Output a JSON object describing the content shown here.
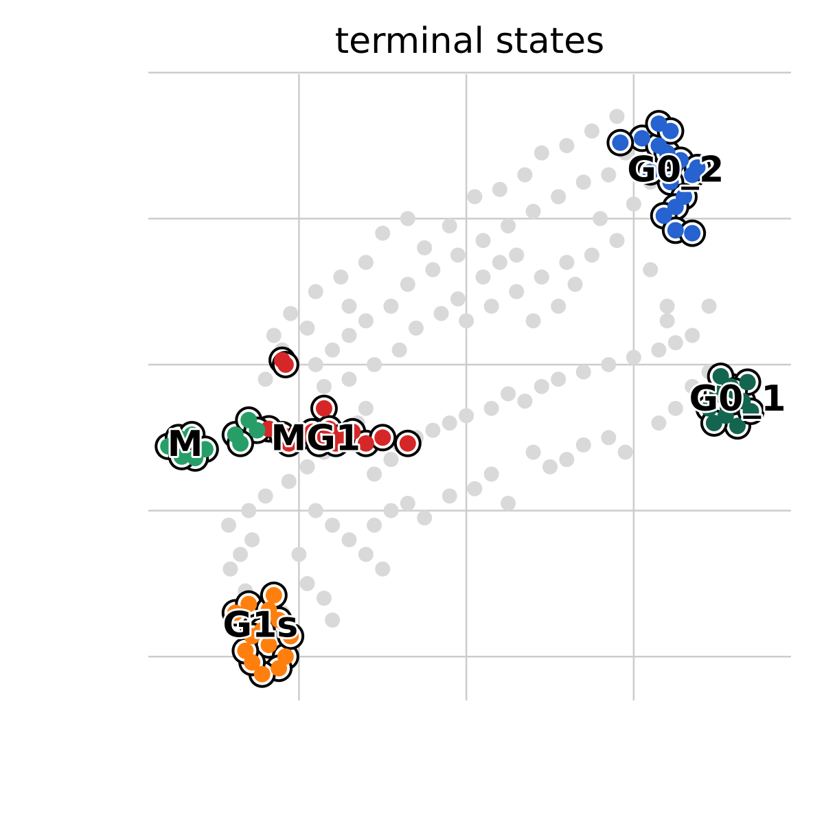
{
  "chart_data": {
    "type": "scatter",
    "title": "terminal states",
    "xlabel": "",
    "ylabel": "",
    "xlim": [
      0,
      3.84
    ],
    "ylim": [
      0,
      4.28
    ],
    "grid": true,
    "xgrid": [
      0.9,
      1.9,
      2.9
    ],
    "ygrid": [
      0.3,
      1.3,
      2.3,
      3.3,
      4.3
    ],
    "background_color": "#d9d9d9",
    "background_points": [
      [
        0.49,
        0.9
      ],
      [
        0.55,
        1.0
      ],
      [
        0.62,
        1.1
      ],
      [
        0.48,
        1.2
      ],
      [
        0.6,
        1.3
      ],
      [
        0.7,
        1.4
      ],
      [
        0.84,
        1.5
      ],
      [
        0.95,
        1.6
      ],
      [
        1.05,
        1.7
      ],
      [
        1.15,
        1.8
      ],
      [
        1.25,
        1.9
      ],
      [
        1.3,
        2.0
      ],
      [
        1.35,
        1.55
      ],
      [
        1.45,
        1.65
      ],
      [
        1.5,
        1.75
      ],
      [
        1.6,
        1.8
      ],
      [
        1.7,
        1.85
      ],
      [
        1.8,
        1.9
      ],
      [
        1.9,
        1.95
      ],
      [
        2.05,
        2.0
      ],
      [
        2.15,
        2.1
      ],
      [
        2.25,
        2.05
      ],
      [
        2.35,
        2.15
      ],
      [
        2.45,
        2.2
      ],
      [
        2.6,
        2.25
      ],
      [
        2.75,
        2.3
      ],
      [
        2.9,
        2.35
      ],
      [
        3.05,
        2.4
      ],
      [
        3.15,
        2.45
      ],
      [
        3.25,
        2.5
      ],
      [
        1.0,
        1.3
      ],
      [
        1.1,
        1.2
      ],
      [
        1.2,
        1.1
      ],
      [
        1.3,
        1.0
      ],
      [
        1.4,
        0.9
      ],
      [
        0.9,
        1.0
      ],
      [
        0.95,
        0.8
      ],
      [
        1.05,
        0.7
      ],
      [
        1.1,
        0.55
      ],
      [
        0.8,
        0.6
      ],
      [
        0.7,
        0.7
      ],
      [
        0.58,
        0.75
      ],
      [
        1.0,
        2.3
      ],
      [
        1.1,
        2.4
      ],
      [
        1.2,
        2.5
      ],
      [
        1.3,
        2.6
      ],
      [
        1.45,
        2.7
      ],
      [
        1.55,
        2.85
      ],
      [
        1.7,
        2.95
      ],
      [
        1.85,
        3.05
      ],
      [
        2.0,
        3.15
      ],
      [
        2.15,
        3.25
      ],
      [
        2.3,
        3.35
      ],
      [
        2.45,
        3.45
      ],
      [
        2.6,
        3.55
      ],
      [
        2.75,
        3.6
      ],
      [
        2.85,
        3.75
      ],
      [
        1.0,
        2.8
      ],
      [
        1.15,
        2.9
      ],
      [
        1.3,
        3.0
      ],
      [
        1.4,
        3.2
      ],
      [
        1.55,
        3.3
      ],
      [
        1.65,
        3.1
      ],
      [
        1.8,
        3.25
      ],
      [
        1.95,
        3.45
      ],
      [
        2.1,
        3.5
      ],
      [
        2.25,
        3.6
      ],
      [
        2.35,
        3.75
      ],
      [
        2.5,
        3.8
      ],
      [
        2.65,
        3.9
      ],
      [
        2.8,
        4.0
      ],
      [
        1.9,
        2.6
      ],
      [
        2.05,
        2.7
      ],
      [
        2.2,
        2.8
      ],
      [
        2.35,
        2.9
      ],
      [
        2.5,
        3.0
      ],
      [
        2.65,
        3.05
      ],
      [
        2.8,
        3.15
      ],
      [
        1.2,
        2.2
      ],
      [
        1.35,
        2.3
      ],
      [
        1.5,
        2.4
      ],
      [
        1.6,
        2.55
      ],
      [
        1.75,
        2.65
      ],
      [
        1.85,
        2.75
      ],
      [
        2.0,
        2.9
      ],
      [
        2.1,
        3.0
      ],
      [
        2.2,
        3.05
      ],
      [
        2.3,
        2.6
      ],
      [
        2.45,
        2.7
      ],
      [
        2.55,
        2.85
      ],
      [
        3.0,
        2.95
      ],
      [
        3.1,
        2.6
      ],
      [
        2.7,
        3.3
      ],
      [
        2.9,
        3.4
      ],
      [
        3.0,
        3.55
      ],
      [
        2.3,
        1.7
      ],
      [
        2.4,
        1.6
      ],
      [
        2.5,
        1.65
      ],
      [
        2.6,
        1.75
      ],
      [
        2.75,
        1.8
      ],
      [
        2.85,
        1.7
      ],
      [
        3.05,
        1.9
      ],
      [
        3.15,
        2.0
      ],
      [
        3.25,
        2.15
      ],
      [
        3.35,
        2.25
      ],
      [
        3.1,
        2.7
      ],
      [
        3.35,
        2.7
      ],
      [
        1.55,
        1.35
      ],
      [
        1.65,
        1.25
      ],
      [
        1.8,
        1.4
      ],
      [
        1.95,
        1.45
      ],
      [
        2.05,
        1.55
      ],
      [
        2.15,
        1.35
      ],
      [
        1.35,
        1.2
      ],
      [
        1.45,
        1.3
      ],
      [
        0.85,
        2.65
      ],
      [
        0.75,
        2.5
      ],
      [
        0.7,
        2.2
      ],
      [
        0.8,
        2.4
      ],
      [
        0.95,
        2.55
      ],
      [
        1.2,
        2.7
      ],
      [
        1.05,
        2.15
      ],
      [
        1.1,
        1.9
      ],
      [
        1.0,
        1.8
      ]
    ],
    "series": [
      {
        "name": "G0_2",
        "color": "#2662d0",
        "points": [
          [
            2.95,
            3.85
          ],
          [
            3.05,
            3.8
          ],
          [
            3.1,
            3.75
          ],
          [
            3.18,
            3.7
          ],
          [
            3.25,
            3.6
          ],
          [
            3.12,
            3.55
          ],
          [
            3.2,
            3.45
          ],
          [
            3.15,
            3.38
          ],
          [
            3.08,
            3.32
          ],
          [
            3.15,
            3.22
          ],
          [
            3.25,
            3.2
          ],
          [
            3.05,
            3.95
          ],
          [
            3.12,
            3.9
          ],
          [
            2.82,
            3.82
          ],
          [
            3.28,
            3.65
          ],
          [
            3.0,
            3.62
          ]
        ]
      },
      {
        "name": "G0_1",
        "color": "#13654f",
        "points": [
          [
            3.4,
            2.1
          ],
          [
            3.48,
            2.15
          ],
          [
            3.55,
            2.05
          ],
          [
            3.45,
            1.95
          ],
          [
            3.52,
            1.88
          ],
          [
            3.6,
            1.98
          ],
          [
            3.35,
            2.0
          ],
          [
            3.42,
            2.22
          ],
          [
            3.58,
            2.18
          ],
          [
            3.38,
            1.9
          ],
          [
            3.5,
            2.12
          ]
        ]
      },
      {
        "name": "MG1",
        "color": "#d62728",
        "points": [
          [
            0.8,
            2.33
          ],
          [
            0.82,
            2.3
          ],
          [
            1.05,
            2.0
          ],
          [
            0.72,
            1.86
          ],
          [
            0.8,
            1.82
          ],
          [
            0.9,
            1.8
          ],
          [
            0.98,
            1.84
          ],
          [
            1.08,
            1.86
          ],
          [
            1.15,
            1.8
          ],
          [
            1.22,
            1.84
          ],
          [
            1.3,
            1.76
          ],
          [
            1.4,
            1.8
          ],
          [
            1.55,
            1.76
          ],
          [
            0.84,
            1.76
          ],
          [
            1.02,
            1.76
          ],
          [
            1.12,
            1.76
          ]
        ]
      },
      {
        "name": "M",
        "color": "#279e68",
        "points": [
          [
            0.12,
            1.74
          ],
          [
            0.18,
            1.8
          ],
          [
            0.26,
            1.82
          ],
          [
            0.34,
            1.72
          ],
          [
            0.28,
            1.66
          ],
          [
            0.2,
            1.67
          ],
          [
            0.52,
            1.82
          ],
          [
            0.6,
            1.92
          ],
          [
            0.65,
            1.85
          ],
          [
            0.55,
            1.76
          ]
        ]
      },
      {
        "name": "G1s",
        "color": "#ff7f0e",
        "points": [
          [
            0.52,
            0.6
          ],
          [
            0.6,
            0.66
          ],
          [
            0.72,
            0.62
          ],
          [
            0.78,
            0.55
          ],
          [
            0.68,
            0.48
          ],
          [
            0.62,
            0.44
          ],
          [
            0.72,
            0.38
          ],
          [
            0.82,
            0.3
          ],
          [
            0.78,
            0.22
          ],
          [
            0.68,
            0.18
          ],
          [
            0.62,
            0.26
          ],
          [
            0.85,
            0.44
          ],
          [
            0.75,
            0.72
          ],
          [
            0.58,
            0.34
          ]
        ]
      }
    ],
    "state_labels": [
      "G0_2",
      "G0_1",
      "MG1",
      "M",
      "G1s"
    ],
    "label_positions": [
      [
        3.15,
        3.62
      ],
      [
        3.52,
        2.05
      ],
      [
        1.0,
        1.78
      ],
      [
        0.22,
        1.74
      ],
      [
        0.67,
        0.5
      ]
    ]
  }
}
